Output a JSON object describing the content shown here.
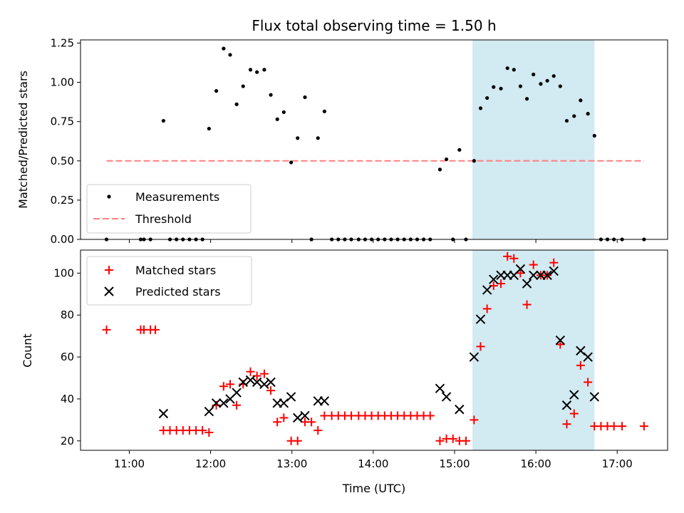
{
  "chart_data": [
    {
      "type": "scatter",
      "title": "Flux total observing time = 1.50 h",
      "xlabel": "",
      "ylabel": "Matched/Predicted stars",
      "ylim": [
        0,
        1.27
      ],
      "yticks": [
        "0.00",
        "0.25",
        "0.50",
        "0.75",
        "1.00",
        "1.25"
      ],
      "legend_position": "lower-left",
      "highlight_span": {
        "x0": 15.22,
        "x1": 16.72,
        "color": "#add8e6"
      },
      "series": [
        {
          "name": "Measurements",
          "marker": "dot",
          "color": "#000000",
          "points": [
            [
              10.72,
              0
            ],
            [
              11.14,
              0
            ],
            [
              11.18,
              0
            ],
            [
              11.26,
              0
            ],
            [
              11.42,
              0.755
            ],
            [
              11.5,
              0
            ],
            [
              11.58,
              0
            ],
            [
              11.66,
              0
            ],
            [
              11.74,
              0
            ],
            [
              11.82,
              0
            ],
            [
              11.9,
              0
            ],
            [
              11.98,
              0.705
            ],
            [
              12.07,
              0.945
            ],
            [
              12.16,
              1.215
            ],
            [
              12.24,
              1.175
            ],
            [
              12.32,
              0.86
            ],
            [
              12.4,
              0.975
            ],
            [
              12.49,
              1.08
            ],
            [
              12.57,
              1.065
            ],
            [
              12.66,
              1.08
            ],
            [
              12.74,
              0.92
            ],
            [
              12.82,
              0.765
            ],
            [
              12.9,
              0.81
            ],
            [
              12.99,
              0.49
            ],
            [
              13.07,
              0.645
            ],
            [
              13.16,
              0.905
            ],
            [
              13.24,
              0
            ],
            [
              13.32,
              0.645
            ],
            [
              13.4,
              0.815
            ],
            [
              13.49,
              0
            ],
            [
              13.57,
              0
            ],
            [
              13.65,
              0
            ],
            [
              13.73,
              0
            ],
            [
              13.82,
              0
            ],
            [
              13.9,
              0
            ],
            [
              13.98,
              0
            ],
            [
              14.06,
              0
            ],
            [
              14.14,
              0
            ],
            [
              14.22,
              0
            ],
            [
              14.3,
              0
            ],
            [
              14.38,
              0
            ],
            [
              14.46,
              0
            ],
            [
              14.54,
              0
            ],
            [
              14.62,
              0
            ],
            [
              14.7,
              0
            ],
            [
              14.82,
              0.445
            ],
            [
              14.9,
              0.51
            ],
            [
              14.98,
              0
            ],
            [
              15.06,
              0.57
            ],
            [
              15.14,
              0
            ],
            [
              15.24,
              0.5
            ],
            [
              15.32,
              0.835
            ],
            [
              15.4,
              0.9
            ],
            [
              15.48,
              0.97
            ],
            [
              15.57,
              0.96
            ],
            [
              15.65,
              1.09
            ],
            [
              15.73,
              1.08
            ],
            [
              15.81,
              0.975
            ],
            [
              15.89,
              0.895
            ],
            [
              15.97,
              1.05
            ],
            [
              16.06,
              0.99
            ],
            [
              16.14,
              1.01
            ],
            [
              16.22,
              1.04
            ],
            [
              16.3,
              0.975
            ],
            [
              16.38,
              0.755
            ],
            [
              16.47,
              0.785
            ],
            [
              16.55,
              0.885
            ],
            [
              16.64,
              0.8
            ],
            [
              16.72,
              0.66
            ],
            [
              16.8,
              0
            ],
            [
              16.88,
              0
            ],
            [
              16.96,
              0
            ],
            [
              17.06,
              0
            ],
            [
              17.33,
              0
            ]
          ]
        },
        {
          "name": "Threshold",
          "line": "dashed",
          "color": "#ff7f7f",
          "points": [
            [
              10.72,
              0.5
            ],
            [
              17.33,
              0.5
            ]
          ]
        }
      ]
    },
    {
      "type": "scatter",
      "title": "",
      "xlabel": "Time (UTC)",
      "ylabel": "Count",
      "ylim": [
        15.5,
        111
      ],
      "yticks": [
        "20",
        "40",
        "60",
        "80",
        "100"
      ],
      "xticks": [
        "11:00",
        "12:00",
        "13:00",
        "14:00",
        "15:00",
        "16:00",
        "17:00"
      ],
      "xlim": [
        10.4,
        17.62
      ],
      "legend_position": "upper-left",
      "highlight_span": {
        "x0": 15.22,
        "x1": 16.72,
        "color": "#add8e6"
      },
      "series": [
        {
          "name": "Matched stars",
          "marker": "plus",
          "color": "#ff0000",
          "points": [
            [
              10.72,
              73
            ],
            [
              11.14,
              73
            ],
            [
              11.18,
              73
            ],
            [
              11.26,
              73
            ],
            [
              11.32,
              73
            ],
            [
              11.42,
              25
            ],
            [
              11.5,
              25
            ],
            [
              11.58,
              25
            ],
            [
              11.66,
              25
            ],
            [
              11.74,
              25
            ],
            [
              11.82,
              25
            ],
            [
              11.9,
              25
            ],
            [
              11.98,
              24
            ],
            [
              12.07,
              37
            ],
            [
              12.16,
              46
            ],
            [
              12.24,
              47
            ],
            [
              12.32,
              37
            ],
            [
              12.4,
              47
            ],
            [
              12.49,
              53
            ],
            [
              12.57,
              51
            ],
            [
              12.66,
              52
            ],
            [
              12.74,
              44
            ],
            [
              12.82,
              29
            ],
            [
              12.9,
              31
            ],
            [
              12.99,
              20
            ],
            [
              13.07,
              20
            ],
            [
              13.16,
              29
            ],
            [
              13.24,
              29
            ],
            [
              13.32,
              25
            ],
            [
              13.4,
              32
            ],
            [
              13.49,
              32
            ],
            [
              13.57,
              32
            ],
            [
              13.65,
              32
            ],
            [
              13.73,
              32
            ],
            [
              13.82,
              32
            ],
            [
              13.9,
              32
            ],
            [
              13.98,
              32
            ],
            [
              14.06,
              32
            ],
            [
              14.14,
              32
            ],
            [
              14.22,
              32
            ],
            [
              14.3,
              32
            ],
            [
              14.38,
              32
            ],
            [
              14.46,
              32
            ],
            [
              14.54,
              32
            ],
            [
              14.62,
              32
            ],
            [
              14.7,
              32
            ],
            [
              14.82,
              20
            ],
            [
              14.9,
              21
            ],
            [
              14.98,
              21
            ],
            [
              15.06,
              20
            ],
            [
              15.14,
              20
            ],
            [
              15.24,
              30
            ],
            [
              15.32,
              65
            ],
            [
              15.4,
              83
            ],
            [
              15.48,
              94
            ],
            [
              15.57,
              95
            ],
            [
              15.65,
              108
            ],
            [
              15.73,
              107
            ],
            [
              15.81,
              100
            ],
            [
              15.89,
              85
            ],
            [
              15.97,
              104
            ],
            [
              16.06,
              99
            ],
            [
              16.14,
              99
            ],
            [
              16.22,
              105
            ],
            [
              16.3,
              66
            ],
            [
              16.38,
              28
            ],
            [
              16.47,
              33
            ],
            [
              16.55,
              56
            ],
            [
              16.64,
              48
            ],
            [
              16.72,
              27
            ],
            [
              16.8,
              27
            ],
            [
              16.88,
              27
            ],
            [
              16.96,
              27
            ],
            [
              17.06,
              27
            ],
            [
              17.33,
              27
            ]
          ]
        },
        {
          "name": "Predicted stars",
          "marker": "x",
          "color": "#000000",
          "points": [
            [
              11.42,
              33
            ],
            [
              11.98,
              34
            ],
            [
              12.07,
              38
            ],
            [
              12.16,
              38
            ],
            [
              12.24,
              40
            ],
            [
              12.32,
              43
            ],
            [
              12.4,
              48
            ],
            [
              12.49,
              49
            ],
            [
              12.57,
              48
            ],
            [
              12.66,
              47
            ],
            [
              12.74,
              48
            ],
            [
              12.82,
              38
            ],
            [
              12.9,
              38
            ],
            [
              12.99,
              41
            ],
            [
              13.07,
              31
            ],
            [
              13.16,
              32
            ],
            [
              13.32,
              39
            ],
            [
              13.4,
              39
            ],
            [
              14.82,
              45
            ],
            [
              14.9,
              41
            ],
            [
              15.06,
              35
            ],
            [
              15.24,
              60
            ],
            [
              15.32,
              78
            ],
            [
              15.4,
              92
            ],
            [
              15.48,
              97
            ],
            [
              15.57,
              99
            ],
            [
              15.65,
              99
            ],
            [
              15.73,
              99
            ],
            [
              15.81,
              102
            ],
            [
              15.89,
              95
            ],
            [
              15.97,
              99
            ],
            [
              16.06,
              99
            ],
            [
              16.14,
              99
            ],
            [
              16.22,
              101
            ],
            [
              16.3,
              68
            ],
            [
              16.38,
              37
            ],
            [
              16.47,
              42
            ],
            [
              16.55,
              63
            ],
            [
              16.64,
              60
            ],
            [
              16.72,
              41
            ]
          ]
        }
      ]
    }
  ]
}
